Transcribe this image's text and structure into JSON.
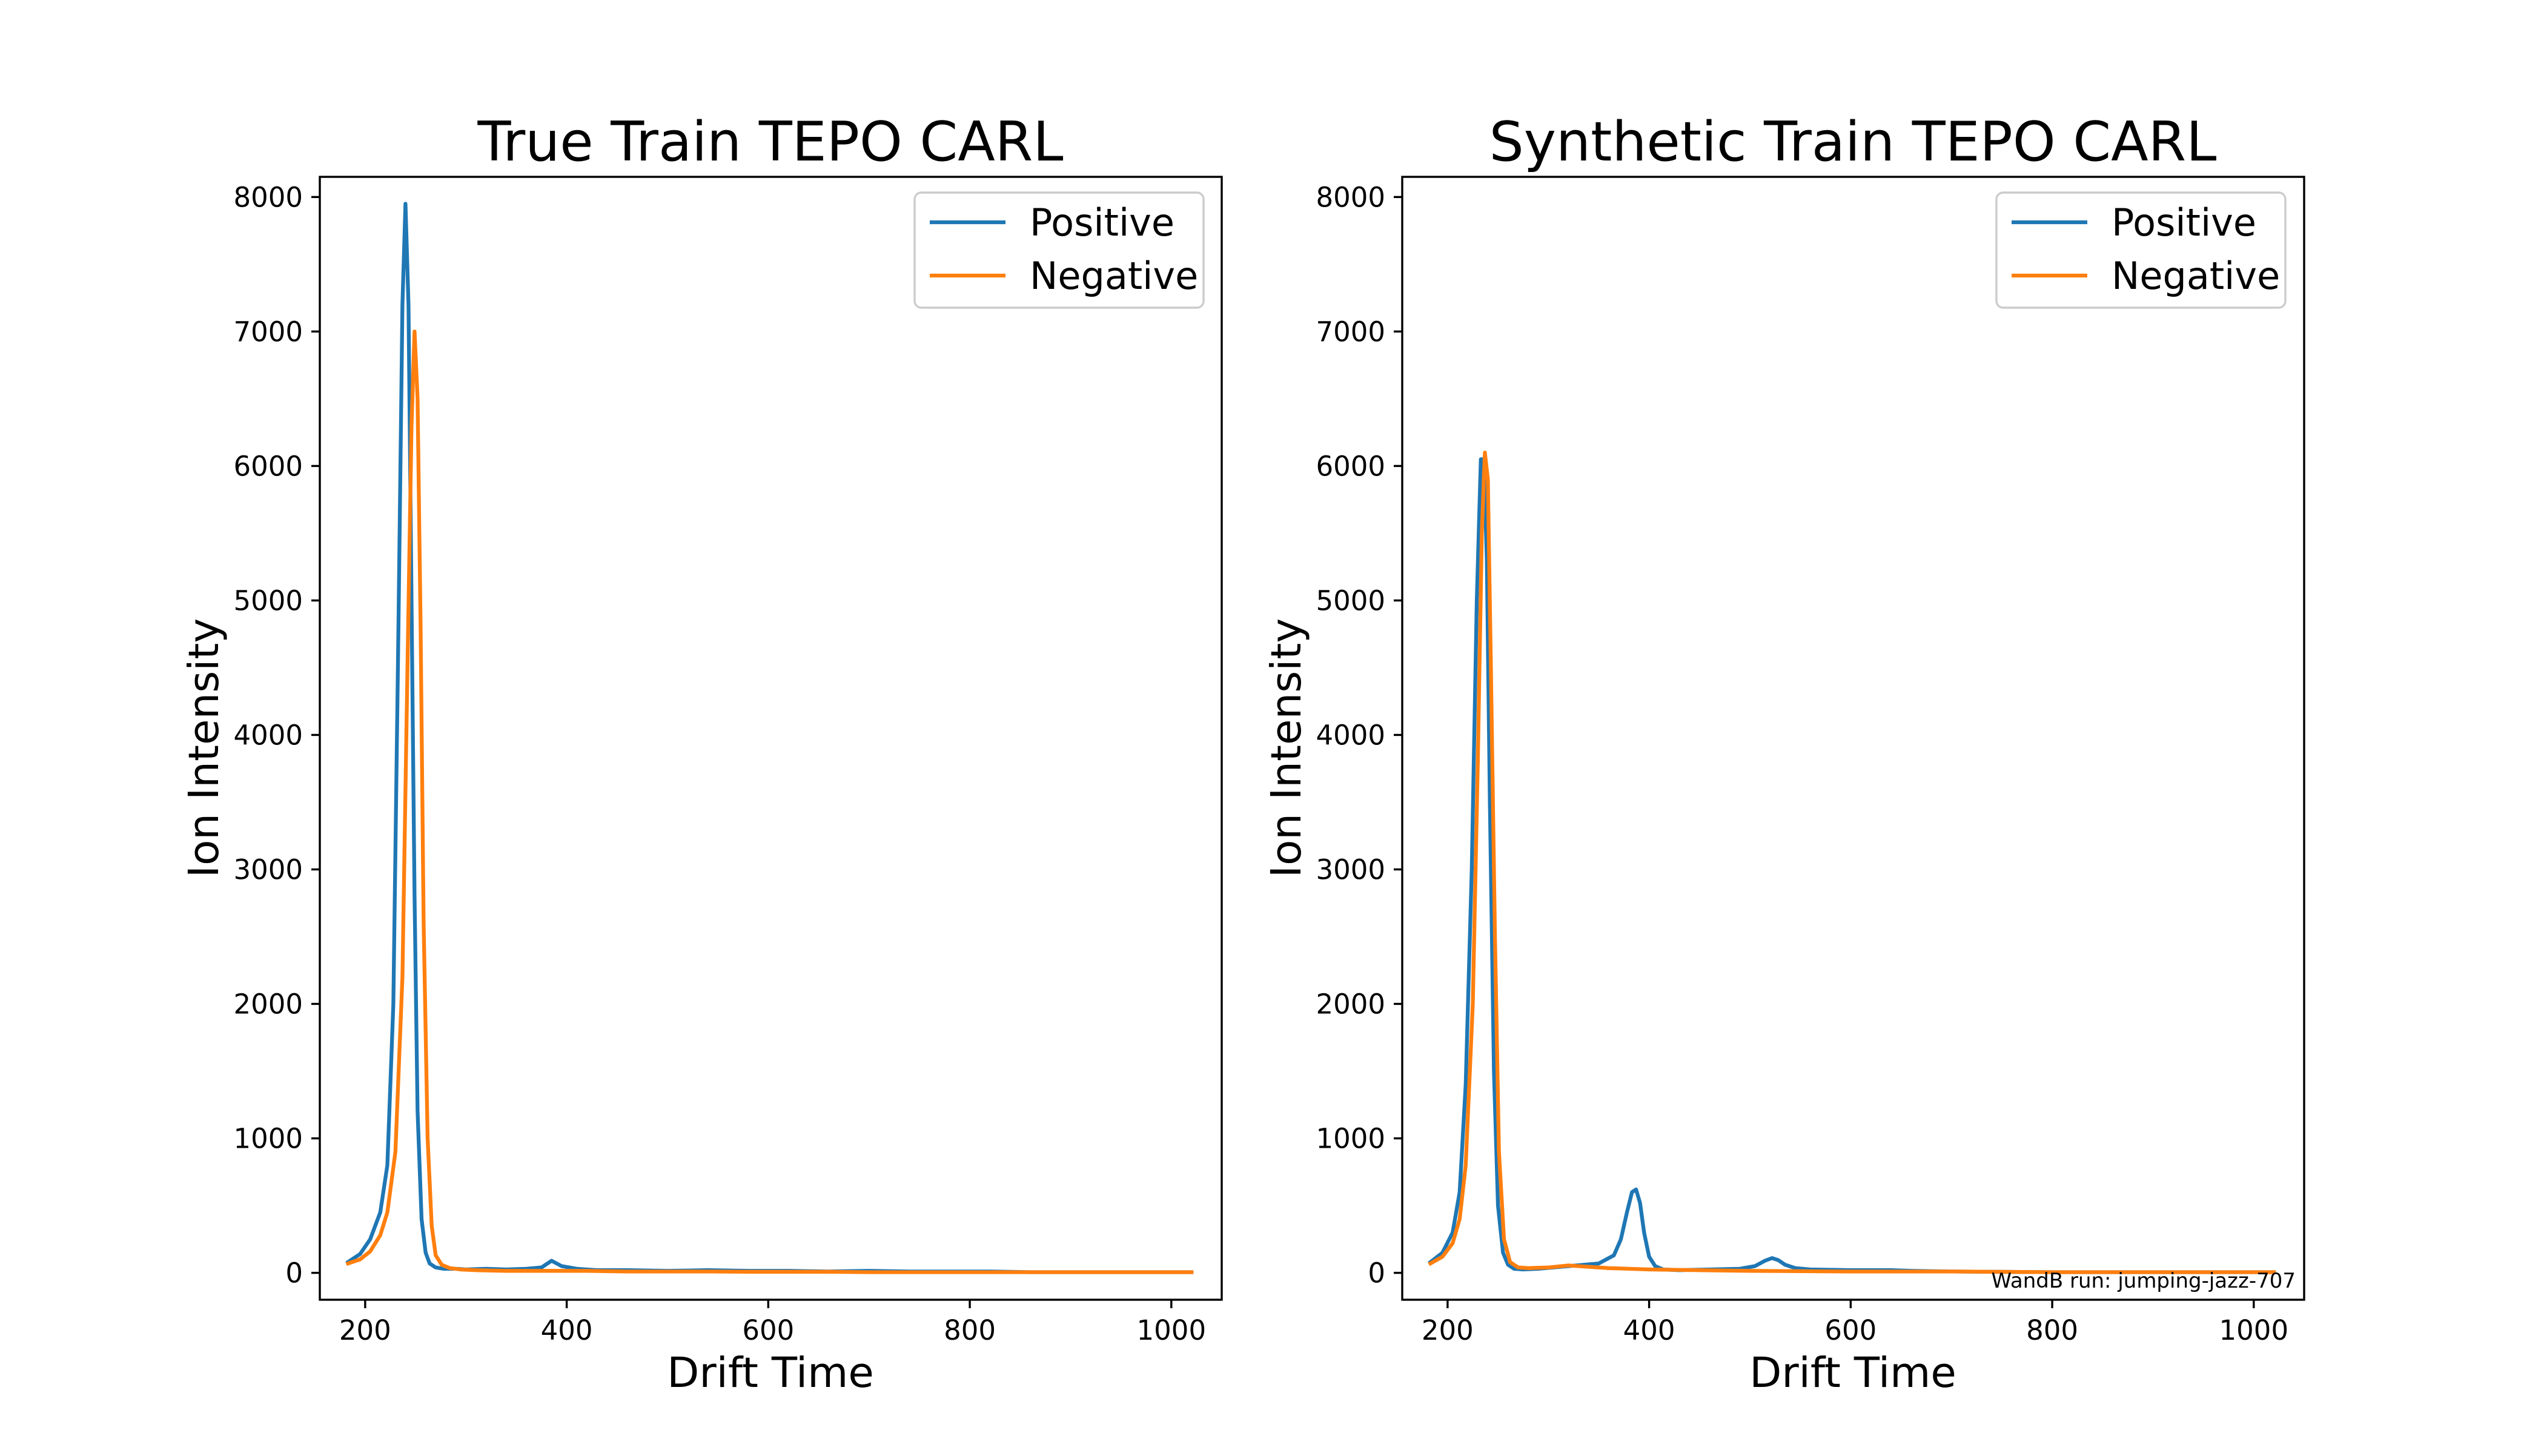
{
  "colors": {
    "positive": "#1f77b4",
    "negative": "#ff7f0e",
    "background": "#ffffff"
  },
  "footnote": "WandB run: jumping-jazz-707",
  "chart_data": [
    {
      "type": "line",
      "title": "True Train TEPO CARL",
      "xlabel": "Drift Time",
      "ylabel": "Ion Intensity",
      "xlim": [
        155,
        1050
      ],
      "ylim": [
        -200,
        8150
      ],
      "xticks": [
        200,
        400,
        600,
        800,
        1000
      ],
      "yticks": [
        0,
        1000,
        2000,
        3000,
        4000,
        5000,
        6000,
        7000,
        8000
      ],
      "grid": false,
      "legend": "top-right",
      "series": [
        {
          "name": "Positive",
          "x": [
            183,
            195,
            205,
            215,
            222,
            228,
            233,
            237,
            240,
            243,
            246,
            249,
            252,
            256,
            260,
            264,
            270,
            278,
            290,
            300,
            320,
            340,
            360,
            375,
            385,
            395,
            410,
            430,
            460,
            500,
            540,
            580,
            620,
            660,
            700,
            740,
            780,
            820,
            860,
            900,
            940,
            980,
            1020
          ],
          "y": [
            80,
            140,
            250,
            450,
            800,
            2000,
            4800,
            7200,
            7950,
            7200,
            5000,
            2800,
            1200,
            400,
            150,
            70,
            40,
            30,
            30,
            25,
            30,
            25,
            30,
            40,
            90,
            50,
            30,
            20,
            20,
            15,
            20,
            15,
            15,
            10,
            15,
            10,
            10,
            10,
            5,
            5,
            5,
            5,
            5
          ]
        },
        {
          "name": "Negative",
          "x": [
            183,
            195,
            205,
            215,
            222,
            230,
            237,
            242,
            246,
            249,
            252,
            255,
            258,
            262,
            266,
            270,
            276,
            284,
            295,
            310,
            340,
            380,
            420,
            460,
            500,
            540,
            580,
            620,
            660,
            700,
            740,
            780,
            820,
            860,
            900,
            940,
            980,
            1020
          ],
          "y": [
            70,
            100,
            160,
            280,
            450,
            900,
            2200,
            4500,
            6300,
            7000,
            6500,
            4800,
            2600,
            1000,
            350,
            130,
            60,
            35,
            25,
            20,
            15,
            15,
            15,
            10,
            10,
            10,
            8,
            8,
            8,
            5,
            5,
            5,
            5,
            5,
            5,
            5,
            5,
            5
          ]
        }
      ]
    },
    {
      "type": "line",
      "title": "Synthetic Train TEPO CARL",
      "xlabel": "Drift Time",
      "ylabel": "Ion Intensity",
      "xlim": [
        155,
        1050
      ],
      "ylim": [
        -200,
        8150
      ],
      "xticks": [
        200,
        400,
        600,
        800,
        1000
      ],
      "yticks": [
        0,
        1000,
        2000,
        3000,
        4000,
        5000,
        6000,
        7000,
        8000
      ],
      "grid": false,
      "legend": "top-right",
      "series": [
        {
          "name": "Positive",
          "x": [
            183,
            195,
            205,
            212,
            218,
            224,
            229,
            233,
            236,
            239,
            242,
            246,
            250,
            255,
            260,
            266,
            275,
            290,
            320,
            350,
            365,
            372,
            378,
            383,
            387,
            391,
            395,
            400,
            406,
            414,
            430,
            460,
            490,
            505,
            515,
            522,
            528,
            535,
            545,
            560,
            600,
            640,
            660,
            700,
            800,
            900,
            1020
          ],
          "y": [
            80,
            150,
            300,
            600,
            1400,
            3000,
            5000,
            6050,
            6050,
            5300,
            3500,
            1500,
            500,
            150,
            60,
            30,
            25,
            30,
            50,
            70,
            130,
            250,
            450,
            600,
            620,
            520,
            300,
            120,
            50,
            25,
            20,
            25,
            30,
            50,
            90,
            110,
            95,
            60,
            35,
            25,
            20,
            20,
            15,
            10,
            5,
            5,
            5
          ]
        },
        {
          "name": "Negative",
          "x": [
            183,
            195,
            205,
            212,
            218,
            225,
            230,
            234,
            237,
            240,
            243,
            247,
            251,
            256,
            262,
            270,
            280,
            300,
            320,
            340,
            360,
            400,
            450,
            500,
            600,
            700,
            800,
            900,
            1020
          ],
          "y": [
            70,
            120,
            220,
            400,
            800,
            2000,
            3800,
            5500,
            6100,
            5900,
            4500,
            2500,
            900,
            250,
            80,
            40,
            35,
            40,
            55,
            45,
            35,
            25,
            20,
            15,
            10,
            10,
            5,
            5,
            5
          ]
        }
      ]
    }
  ]
}
